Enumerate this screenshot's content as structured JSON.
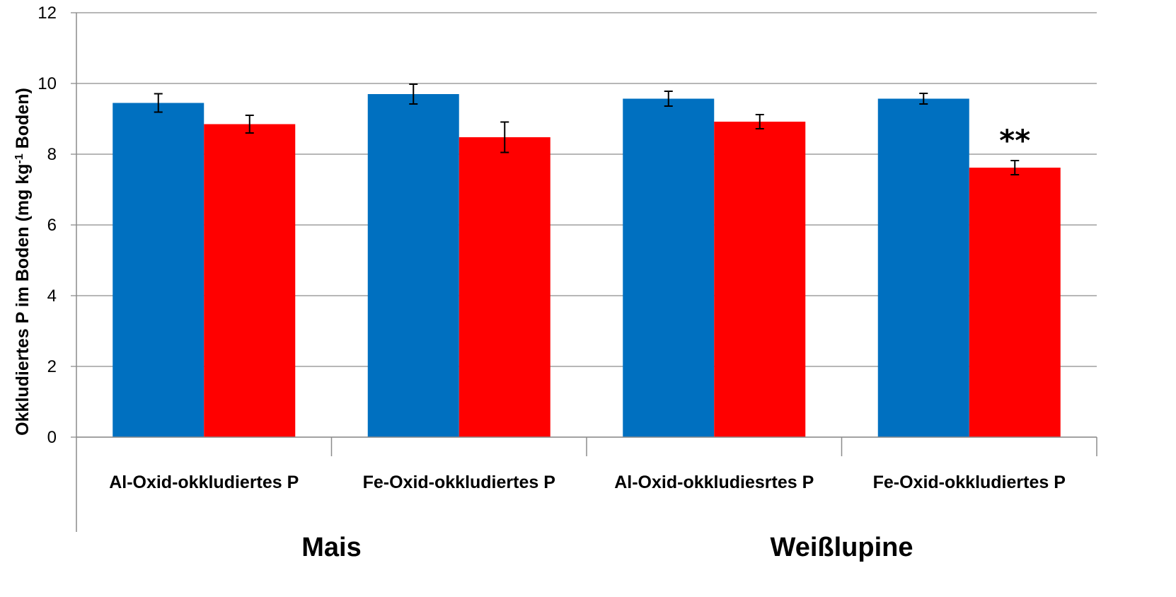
{
  "chart_data": {
    "type": "bar",
    "ylabel_parts": [
      "Okkludiertes P im Boden (mg kg",
      "-1",
      " Boden)"
    ],
    "ylim": [
      0,
      12
    ],
    "yticks": [
      "0",
      "2",
      "4",
      "6",
      "8",
      "10",
      "12"
    ],
    "grid": true,
    "groups": [
      {
        "label": "Mais",
        "span": 2
      },
      {
        "label": "Weißlupine",
        "span": 2
      }
    ],
    "categories": [
      "Al-Oxid-okkludiertes P",
      "Fe-Oxid-okkludiertes P",
      "Al-Oxid-okkludiesrtes P",
      "Fe-Oxid-okkludiertes P"
    ],
    "series": [
      {
        "color": "#0070C0",
        "values": [
          9.45,
          9.7,
          9.57,
          9.57
        ],
        "errors": [
          0.26,
          0.28,
          0.21,
          0.15
        ]
      },
      {
        "color": "#FF0000",
        "values": [
          8.85,
          8.48,
          8.92,
          7.62
        ],
        "errors": [
          0.25,
          0.43,
          0.2,
          0.2
        ]
      }
    ],
    "annotations": [
      {
        "text": "**",
        "category": 3,
        "series": 1
      }
    ]
  }
}
